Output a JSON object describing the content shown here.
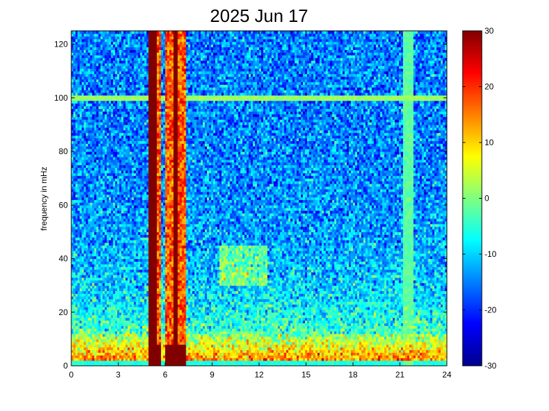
{
  "chart_data": {
    "type": "heatmap",
    "title": "2025 Jun 17",
    "xlabel": "",
    "ylabel": "frequency in mHz",
    "xlim": [
      0,
      24
    ],
    "ylim": [
      0,
      125
    ],
    "x_ticks": [
      0,
      3,
      6,
      9,
      12,
      15,
      18,
      21,
      24
    ],
    "x_tick_labels": [
      "0",
      "3",
      "6",
      "9",
      "12",
      "15",
      "18",
      "21",
      "24"
    ],
    "y_ticks": [
      0,
      20,
      40,
      60,
      80,
      100,
      120
    ],
    "y_tick_labels": [
      "0",
      "20",
      "40",
      "60",
      "80",
      "100",
      "120"
    ],
    "colorbar": {
      "range": [
        -30,
        30
      ],
      "ticks": [
        -30,
        -20,
        -10,
        0,
        10,
        20,
        30
      ],
      "tick_labels": [
        "-30",
        "-20",
        "-10",
        "0",
        "10",
        "20",
        "30"
      ],
      "colormap": "jet"
    },
    "features": {
      "background_level_high_freq": -15,
      "background_level_low_freq": 5,
      "horizontal_line_frequency": 100,
      "horizontal_line_level": 0,
      "saturated_bands_hours": [
        [
          4.9,
          5.7
        ],
        [
          6.5,
          6.8
        ]
      ],
      "narrow_lines_hours": [
        5.65,
        6.1,
        6.35,
        6.95,
        7.15
      ],
      "vertical_faint_band_hours": [
        21.2,
        21.8
      ],
      "low_freq_enhanced_band_mhz": [
        0,
        12
      ],
      "enhanced_patch": {
        "hours": [
          9.5,
          12.5
        ],
        "mhz": [
          30,
          45
        ]
      }
    }
  }
}
